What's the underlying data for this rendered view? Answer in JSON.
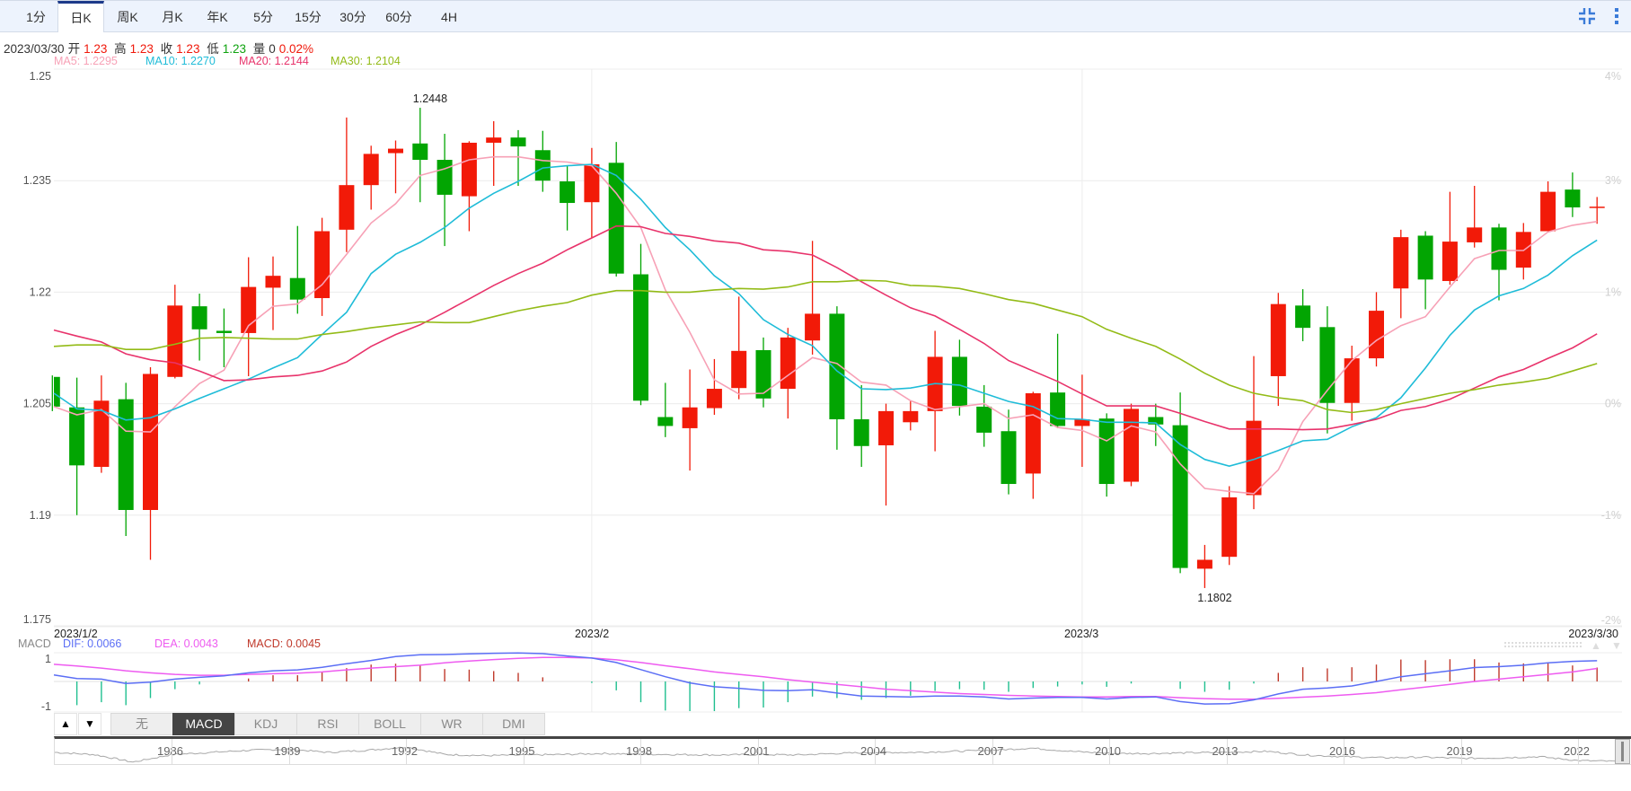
{
  "period_tabs": [
    "1分",
    "日K",
    "周K",
    "月K",
    "年K",
    "5分",
    "15分",
    "30分",
    "60分",
    "4H"
  ],
  "active_period": "日K",
  "toolbar_icons": [
    "compress-icon",
    "more-vertical-icon"
  ],
  "info": {
    "date": "2023/03/30",
    "open_label": "开",
    "open": "1.23",
    "high_label": "高",
    "high": "1.23",
    "close_label": "收",
    "close": "1.23",
    "low_label": "低",
    "low": "1.23",
    "volume_label": "量",
    "volume": "0",
    "change": "0.02%"
  },
  "ma_legend": [
    {
      "text": "MA5: 1.2295",
      "color": "#f7a1b6"
    },
    {
      "text": "MA10: 1.2270",
      "color": "#1fbcd8"
    },
    {
      "text": "MA20: 1.2144",
      "color": "#e8336b"
    },
    {
      "text": "MA30: 1.2104",
      "color": "#93bb17"
    }
  ],
  "colors": {
    "up": "#f21a08",
    "down": "#02a502",
    "macd_up": "#c0392b",
    "macd_down": "#1fbf8f",
    "dif": "#5b6ef5",
    "dea": "#ee5bf0"
  },
  "chart_data": [
    {
      "type": "candlestick",
      "y_ticks": [
        "1.25",
        "1.235",
        "1.22",
        "1.205",
        "1.19",
        "1.175"
      ],
      "y_tick_values": [
        1.25,
        1.235,
        1.22,
        1.205,
        1.19,
        1.175
      ],
      "right_ticks": [
        "4%",
        "3%",
        "1%",
        "0%",
        "-1%",
        "-2%"
      ],
      "ylim": [
        1.175,
        1.25
      ],
      "x_labels": [
        {
          "label": "2023/1/2",
          "index": 0
        },
        {
          "label": "2023/2",
          "index": 22
        },
        {
          "label": "2023/3",
          "index": 42
        },
        {
          "label": "2023/3/30",
          "index": 63
        }
      ],
      "annotations": [
        {
          "text": "1.2448",
          "index": 15,
          "value": 1.2448,
          "position": "above"
        },
        {
          "text": "1.1802",
          "index": 47,
          "value": 1.1802,
          "position": "below"
        }
      ],
      "ohlc_fields": [
        "open",
        "high",
        "low",
        "close"
      ],
      "candles": [
        [
          1.2086,
          1.2088,
          1.204,
          1.2046
        ],
        [
          1.2045,
          1.2085,
          1.19,
          1.1967
        ],
        [
          1.1965,
          1.2088,
          1.1957,
          1.2054
        ],
        [
          1.2056,
          1.2078,
          1.1872,
          1.1907
        ],
        [
          1.1907,
          1.2099,
          1.184,
          1.209
        ],
        [
          1.2086,
          1.221,
          1.2084,
          1.2182
        ],
        [
          1.2181,
          1.2198,
          1.2108,
          1.215
        ],
        [
          1.2148,
          1.2178,
          1.2099,
          1.2145
        ],
        [
          1.2145,
          1.2247,
          1.2087,
          1.2207
        ],
        [
          1.2206,
          1.2248,
          1.2149,
          1.2222
        ],
        [
          1.2219,
          1.2289,
          1.2171,
          1.219
        ],
        [
          1.2192,
          1.23,
          1.2168,
          1.2282
        ],
        [
          1.2284,
          1.2435,
          1.2254,
          1.2344
        ],
        [
          1.2344,
          1.2397,
          1.2311,
          1.2386
        ],
        [
          1.2387,
          1.2404,
          1.2333,
          1.2393
        ],
        [
          1.24,
          1.2448,
          1.2321,
          1.2378
        ],
        [
          1.2378,
          1.2413,
          1.2262,
          1.2331
        ],
        [
          1.2329,
          1.2403,
          1.2282,
          1.2401
        ],
        [
          1.2401,
          1.243,
          1.2343,
          1.2408
        ],
        [
          1.2408,
          1.2418,
          1.2343,
          1.2396
        ],
        [
          1.2391,
          1.2417,
          1.2335,
          1.235
        ],
        [
          1.2349,
          1.237,
          1.2283,
          1.232
        ],
        [
          1.2321,
          1.2394,
          1.2273,
          1.2372
        ],
        [
          1.2374,
          1.2402,
          1.2221,
          1.2225
        ],
        [
          1.2224,
          1.2265,
          1.2048,
          1.2054
        ],
        [
          1.2032,
          1.2078,
          1.2005,
          1.202
        ],
        [
          1.2017,
          1.2096,
          1.196,
          1.2045
        ],
        [
          1.2044,
          1.211,
          1.2035,
          1.207
        ],
        [
          1.2071,
          1.2194,
          1.2056,
          1.2121
        ],
        [
          1.2122,
          1.2139,
          1.2045,
          1.2057
        ],
        [
          1.207,
          1.2152,
          1.203,
          1.2139
        ],
        [
          1.2135,
          1.2269,
          1.2116,
          1.2171
        ],
        [
          1.2171,
          1.2181,
          1.1988,
          1.2029
        ],
        [
          1.2029,
          1.2075,
          1.1965,
          1.1993
        ],
        [
          1.1994,
          1.205,
          1.1913,
          1.204
        ],
        [
          1.2025,
          1.2054,
          1.2014,
          1.204
        ],
        [
          1.204,
          1.2148,
          1.1986,
          1.2113
        ],
        [
          1.2113,
          1.2136,
          1.2034,
          1.2047
        ],
        [
          1.2046,
          1.2075,
          1.1992,
          1.2011
        ],
        [
          1.2013,
          1.2042,
          1.1928,
          1.1942
        ],
        [
          1.1956,
          1.2066,
          1.1922,
          1.2064
        ],
        [
          1.2065,
          1.2144,
          1.2017,
          1.202
        ],
        [
          1.202,
          1.2089,
          1.1965,
          1.2029
        ],
        [
          1.203,
          1.2037,
          1.1925,
          1.1942
        ],
        [
          1.1945,
          1.205,
          1.1939,
          1.2043
        ],
        [
          1.2032,
          1.205,
          1.1993,
          1.2022
        ],
        [
          1.2021,
          1.2065,
          1.1822,
          1.1829
        ],
        [
          1.1828,
          1.186,
          1.1802,
          1.184
        ],
        [
          1.1844,
          1.1939,
          1.1833,
          1.1924
        ],
        [
          1.1927,
          1.2114,
          1.1908,
          1.2027
        ],
        [
          1.2087,
          1.2199,
          1.2047,
          1.2184
        ],
        [
          1.2182,
          1.2204,
          1.2134,
          1.2152
        ],
        [
          1.2153,
          1.2181,
          1.201,
          1.2051
        ],
        [
          1.2051,
          1.2128,
          1.2027,
          1.2111
        ],
        [
          1.2111,
          1.22,
          1.21,
          1.2175
        ],
        [
          1.2205,
          1.2284,
          1.2165,
          1.2274
        ],
        [
          1.2276,
          1.2282,
          1.2177,
          1.2217
        ],
        [
          1.2215,
          1.2335,
          1.221,
          1.2268
        ],
        [
          1.2267,
          1.2343,
          1.226,
          1.2287
        ],
        [
          1.2287,
          1.2292,
          1.2189,
          1.223
        ],
        [
          1.2233,
          1.2293,
          1.2217,
          1.2281
        ],
        [
          1.2282,
          1.2349,
          1.2282,
          1.2335
        ],
        [
          1.2338,
          1.2361,
          1.2301,
          1.2314
        ],
        [
          1.2315,
          1.2328,
          1.2292,
          1.2315
        ]
      ],
      "series": [
        {
          "name": "MA5",
          "color": "#f7a1b6",
          "values": [
            1.2046,
            1.2035,
            1.2042,
            1.2013,
            1.2012,
            1.2046,
            1.2077,
            1.2095,
            1.2155,
            1.2181,
            1.2184,
            1.221,
            1.2251,
            1.2293,
            1.2319,
            1.2357,
            1.2366,
            1.2378,
            1.2382,
            1.2382,
            1.2377,
            1.2375,
            1.237,
            1.2333,
            1.2287,
            1.2203,
            1.2146,
            1.2082,
            1.2063,
            1.2064,
            1.2088,
            1.2112,
            1.2104,
            1.2079,
            1.2075,
            1.2054,
            1.2042,
            1.2046,
            1.205,
            1.203,
            1.2035,
            1.2018,
            1.2014,
            1.2,
            1.202,
            1.2012,
            1.1969,
            1.1936,
            1.1932,
            1.1929,
            1.1961,
            1.2026,
            1.2068,
            1.2108,
            1.2135,
            1.2155,
            1.2167,
            1.2207,
            1.2245,
            1.2256,
            1.2256,
            1.2281,
            1.229,
            1.2295
          ]
        },
        {
          "name": "MA10",
          "color": "#1fbcd8",
          "values": [
            1.2064,
            1.2043,
            1.2041,
            1.2028,
            1.2031,
            1.2043,
            1.2057,
            1.207,
            1.2083,
            1.2098,
            1.2112,
            1.2143,
            1.2173,
            1.2225,
            1.2251,
            1.2267,
            1.2287,
            1.2313,
            1.2333,
            1.2349,
            1.2367,
            1.237,
            1.2372,
            1.2357,
            1.2325,
            1.2287,
            1.2257,
            1.2222,
            1.2198,
            1.2163,
            1.2143,
            1.2128,
            1.2094,
            1.207,
            1.2069,
            1.2071,
            1.2077,
            1.2075,
            1.2064,
            1.2053,
            1.2046,
            1.203,
            1.2029,
            1.2025,
            1.2025,
            1.2024,
            1.1995,
            1.1975,
            1.1966,
            1.1975,
            1.1987,
            1.2,
            1.2002,
            1.2019,
            1.2031,
            1.2058,
            1.2098,
            1.2142,
            1.2176,
            1.2195,
            1.2205,
            1.2223,
            1.2249,
            1.227
          ]
        },
        {
          "name": "MA20",
          "color": "#e8336b",
          "values": [
            1.2149,
            1.2141,
            1.2133,
            1.2117,
            1.2109,
            1.2105,
            1.2094,
            1.2081,
            1.2082,
            1.2086,
            1.2088,
            1.2094,
            1.2106,
            1.2127,
            1.2143,
            1.2156,
            1.2173,
            1.2191,
            1.2209,
            1.2225,
            1.2239,
            1.2257,
            1.2273,
            1.2289,
            1.2288,
            1.2279,
            1.2275,
            1.2269,
            1.2266,
            1.2257,
            1.2255,
            1.225,
            1.2233,
            1.2214,
            1.2196,
            1.2179,
            1.2168,
            1.215,
            1.2131,
            1.2108,
            1.2094,
            1.208,
            1.2063,
            1.2047,
            1.2047,
            1.2047,
            1.2037,
            1.2026,
            1.2016,
            1.2016,
            1.2016,
            1.2015,
            1.2016,
            1.2022,
            1.2029,
            1.2041,
            1.2046,
            1.2056,
            1.2071,
            1.2086,
            1.2096,
            1.2111,
            1.2125,
            1.2144
          ]
        },
        {
          "name": "MA30",
          "color": "#93bb17",
          "values": [
            1.2127,
            1.2129,
            1.2129,
            1.2123,
            1.2123,
            1.213,
            1.2138,
            1.2139,
            1.2138,
            1.2137,
            1.2137,
            1.2143,
            1.2147,
            1.2152,
            1.2156,
            1.216,
            1.2159,
            1.2159,
            1.2167,
            1.2175,
            1.2181,
            1.2186,
            1.2196,
            1.2202,
            1.2202,
            1.22,
            1.22,
            1.2203,
            1.2205,
            1.2204,
            1.2207,
            1.2214,
            1.2214,
            1.2216,
            1.2215,
            1.2209,
            1.2208,
            1.2205,
            1.2198,
            1.219,
            1.2185,
            1.2176,
            1.2167,
            1.215,
            1.2138,
            1.2127,
            1.211,
            1.2091,
            1.2075,
            1.2064,
            1.2058,
            1.2054,
            1.2042,
            1.2038,
            1.2042,
            1.205,
            1.2057,
            1.2064,
            1.2069,
            1.2075,
            1.2079,
            1.2084,
            1.2094,
            1.2104
          ]
        }
      ]
    },
    {
      "type": "macd",
      "label": "MACD",
      "legend": {
        "dif": "DIF: 0.0066",
        "dea": "DEA: 0.0043",
        "macd": "MACD: 0.0045"
      },
      "y_ticks": [
        "1",
        "-1"
      ],
      "ylim": [
        -1,
        1
      ],
      "dif": [
        0.22,
        0.1,
        0.08,
        -0.07,
        -0.02,
        0.08,
        0.14,
        0.19,
        0.29,
        0.36,
        0.39,
        0.48,
        0.6,
        0.71,
        0.84,
        0.9,
        0.91,
        0.93,
        0.95,
        0.96,
        0.94,
        0.86,
        0.79,
        0.64,
        0.4,
        0.16,
        -0.05,
        -0.18,
        -0.23,
        -0.3,
        -0.31,
        -0.28,
        -0.39,
        -0.49,
        -0.51,
        -0.52,
        -0.49,
        -0.49,
        -0.52,
        -0.59,
        -0.56,
        -0.54,
        -0.54,
        -0.59,
        -0.54,
        -0.52,
        -0.68,
        -0.76,
        -0.75,
        -0.62,
        -0.42,
        -0.26,
        -0.22,
        -0.15,
        0,
        0.16,
        0.26,
        0.36,
        0.47,
        0.5,
        0.55,
        0.63,
        0.68,
        0.7
      ],
      "dea": [
        0.58,
        0.52,
        0.45,
        0.36,
        0.29,
        0.24,
        0.21,
        0.21,
        0.24,
        0.26,
        0.28,
        0.32,
        0.39,
        0.45,
        0.5,
        0.55,
        0.63,
        0.69,
        0.74,
        0.78,
        0.81,
        0.81,
        0.79,
        0.73,
        0.64,
        0.53,
        0.43,
        0.32,
        0.24,
        0.16,
        0.06,
        -0.02,
        -0.1,
        -0.18,
        -0.26,
        -0.31,
        -0.36,
        -0.41,
        -0.44,
        -0.47,
        -0.49,
        -0.51,
        -0.52,
        -0.52,
        -0.51,
        -0.51,
        -0.55,
        -0.58,
        -0.6,
        -0.6,
        -0.57,
        -0.53,
        -0.49,
        -0.44,
        -0.38,
        -0.28,
        -0.19,
        -0.1,
        0,
        0.08,
        0.16,
        0.24,
        0.32,
        0.44
      ],
      "histogram": [
        0,
        -0.8,
        -0.7,
        -0.8,
        -0.56,
        -0.26,
        -0.1,
        0,
        0.1,
        0.21,
        0.21,
        0.32,
        0.45,
        0.57,
        0.6,
        0.55,
        0.42,
        0.4,
        0.35,
        0.29,
        0.14,
        0,
        -0.05,
        -0.3,
        -0.7,
        -0.98,
        -1.0,
        -1.0,
        -0.9,
        -0.88,
        -0.7,
        -0.51,
        -0.56,
        -0.62,
        -0.56,
        -0.48,
        -0.32,
        -0.26,
        -0.28,
        -0.35,
        -0.22,
        -0.17,
        -0.1,
        -0.18,
        -0.07,
        0,
        -0.25,
        -0.35,
        -0.28,
        -0.07,
        0.29,
        0.48,
        0.44,
        0.48,
        0.57,
        0.74,
        0.72,
        0.75,
        0.75,
        0.64,
        0.61,
        0.61,
        0.54,
        0.47
      ]
    }
  ],
  "indicator_tabs": [
    "无",
    "MACD",
    "KDJ",
    "RSI",
    "BOLL",
    "WR",
    "DMI"
  ],
  "active_indicator": "MACD",
  "pane_arrows": {
    "up": "▲",
    "down": "▼"
  },
  "navigator": {
    "year_labels": [
      "1986",
      "1989",
      "1992",
      "1995",
      "1998",
      "2001",
      "2004",
      "2007",
      "2010",
      "2013",
      "2016",
      "2019",
      "2022"
    ],
    "history_levels": [
      0.5,
      0.4,
      0.05,
      0.4,
      0.5,
      0.6,
      0.65,
      0.5,
      0.6,
      0.75,
      0.4,
      0.35,
      0.38,
      0.4,
      0.45,
      0.42,
      0.4,
      0.38,
      0.4,
      0.38,
      0.45,
      0.5,
      0.5,
      0.55,
      0.6,
      0.7,
      0.55,
      0.45,
      0.45,
      0.48,
      0.5,
      0.55,
      0.38,
      0.3,
      0.25,
      0.28,
      0.22,
      0.25,
      0.3,
      0.12,
      0.08
    ]
  }
}
